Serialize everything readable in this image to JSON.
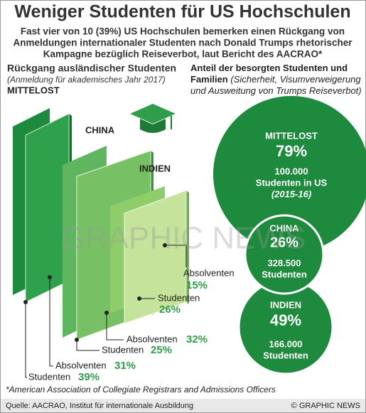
{
  "header": {
    "title": "Weniger Studenten für US Hochschulen",
    "subtitle_lines": [
      "Fast vier von 10 (39%) US Hochschulen bemerken einen Rückgang von",
      "Anmeldungen  internationaler Studenten nach Donald Trumps rhetorischer",
      "Kampagne bezüglich Reiseverbot, laut Bericht des  AACRAO*"
    ]
  },
  "left": {
    "title": "Rückgang ausländischer Studenten",
    "note": "(Anmeldung für akademisches Jahr 2017)",
    "regions": [
      {
        "name": "MITTELOST",
        "students_label": "Studenten",
        "students": "39%",
        "graduates_label": "Absolventen",
        "graduates": "31%"
      },
      {
        "name": "CHINA",
        "students_label": "Studenten",
        "students": "25%",
        "graduates_label": "Absolventen",
        "graduates": "32%"
      },
      {
        "name": "INDIEN",
        "students_label": "Studenten",
        "students": "26%",
        "graduates_label": "Absolventen",
        "graduates": "15%"
      }
    ]
  },
  "right": {
    "title": "Anteil der besorgten Studenten und Familien",
    "note": "(Sicherheit, Visumverweigerung und Ausweitung von Trumps Reiseverbot)",
    "bubbles": [
      {
        "name": "MITTELOST",
        "share": "79%",
        "count": "100.000",
        "unit": "Studenten in US",
        "period": "(2015-16)"
      },
      {
        "name": "CHINA",
        "share": "26%",
        "count": "328.500",
        "unit": "Studenten"
      },
      {
        "name": "INDIEN",
        "share": "49%",
        "count": "166.000",
        "unit": "Studenten"
      }
    ]
  },
  "watermark": "GRAPHIC NEWS",
  "footnote": "*American Association of Collegiate Registrars and Admissions Officers",
  "source": "Quelle: AACRAO, Institut für internationale Ausbildung",
  "credit": "© GRAPHIC NEWS"
}
